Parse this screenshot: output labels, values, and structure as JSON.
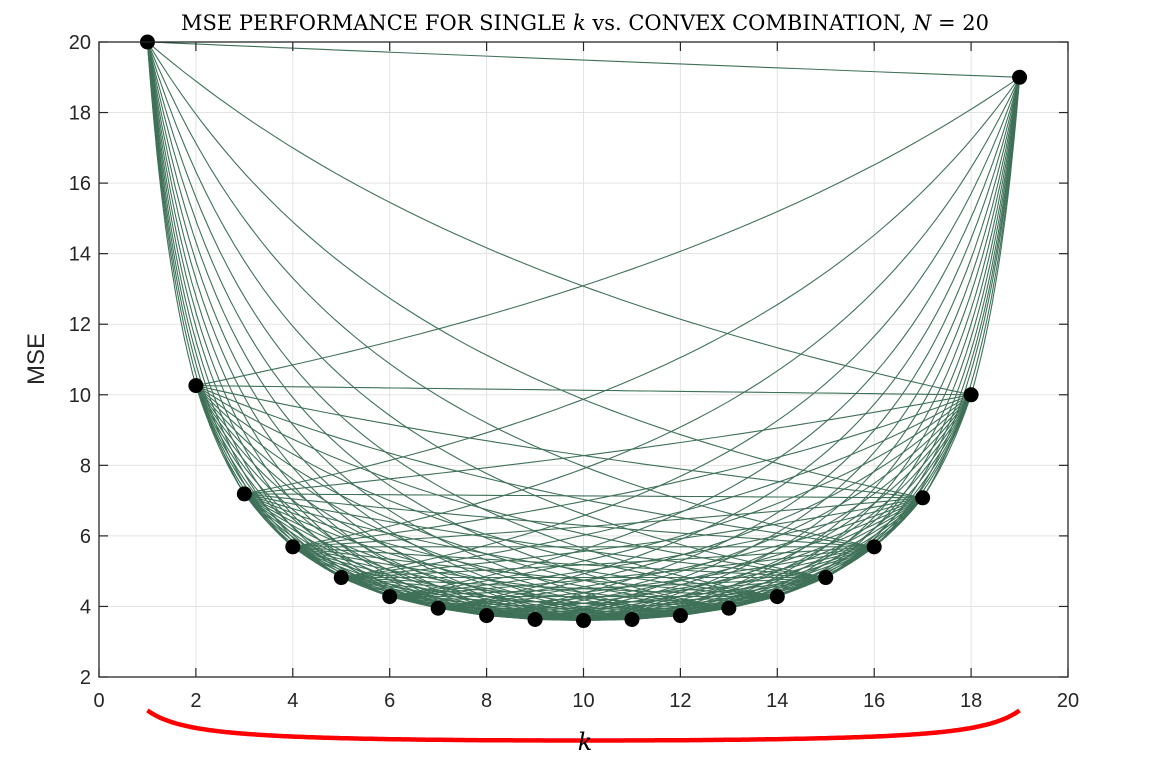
{
  "chart_data": {
    "type": "line",
    "title": {
      "prefix": "MSE PERFORMANCE FOR SINGLE ",
      "k": "k",
      "middle": " vs. CONVEX COMBINATION, ",
      "N": "N",
      "suffix": " = 20"
    },
    "xlabel": "k",
    "ylabel": "MSE",
    "xlim": [
      0,
      20
    ],
    "ylim": [
      2,
      20
    ],
    "xticks": [
      0,
      2,
      4,
      6,
      8,
      10,
      12,
      14,
      16,
      18,
      20
    ],
    "yticks": [
      2,
      4,
      6,
      8,
      10,
      12,
      14,
      16,
      18,
      20
    ],
    "grid": true,
    "N": 20,
    "single_k_points": {
      "k": [
        1,
        2,
        3,
        4,
        5,
        6,
        7,
        8,
        9,
        10,
        11,
        12,
        13,
        14,
        15,
        16,
        17,
        18,
        19
      ],
      "mse": [
        20.0,
        10.26,
        7.19,
        5.69,
        4.82,
        4.28,
        3.95,
        3.74,
        3.63,
        3.6,
        3.63,
        3.74,
        3.95,
        4.28,
        4.82,
        5.69,
        7.08,
        10.0,
        19.0
      ],
      "color": "#000000"
    },
    "lower_envelope": {
      "formula": "N / (k (N - k))",
      "color": "#ff0000"
    },
    "convex_combination_curves": {
      "description_rule": "for each pair (i, j) of single-k values, curve over k in [i, j]",
      "color": "#3f7158"
    }
  }
}
